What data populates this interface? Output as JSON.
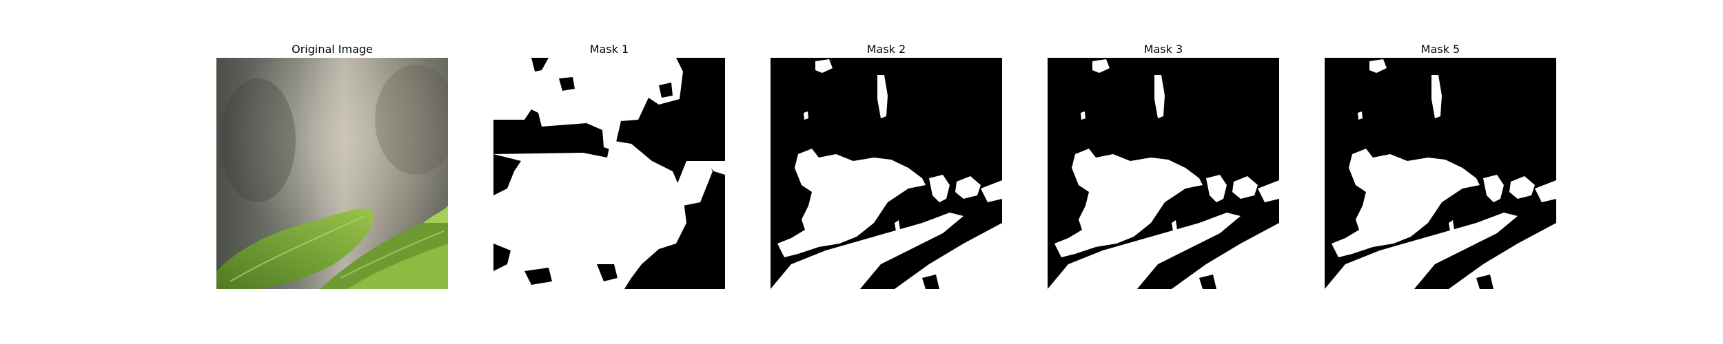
{
  "panels": [
    {
      "title": "Original Image",
      "kind": "photo",
      "description_icon": "leaf-photo"
    },
    {
      "title": "Mask 1",
      "kind": "mask"
    },
    {
      "title": "Mask 2",
      "kind": "mask"
    },
    {
      "title": "Mask 3",
      "kind": "mask"
    },
    {
      "title": "Mask 5",
      "kind": "mask"
    }
  ],
  "colors": {
    "mask_foreground": "#ffffff",
    "mask_background": "#000000",
    "leaf_light": "#9bc34a",
    "leaf_dark": "#4f7a23",
    "wall_light": "#b9b4a8",
    "wall_dark": "#4b4f48"
  }
}
